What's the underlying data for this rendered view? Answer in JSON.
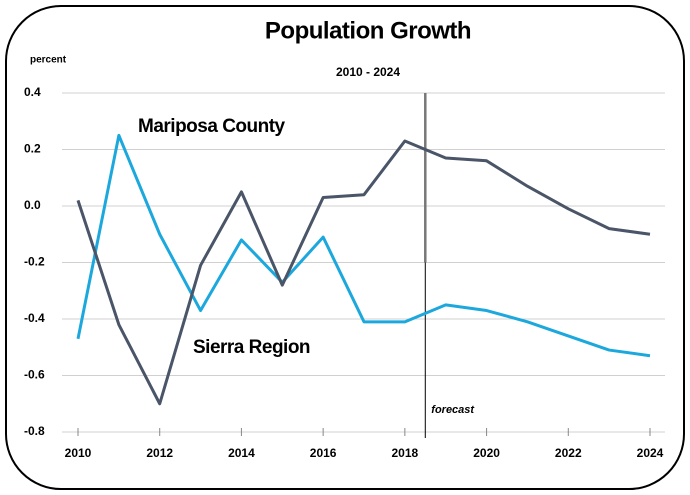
{
  "chart_data": {
    "type": "line",
    "title": "Population Growth",
    "subtitle": "2010 - 2024",
    "y_label": "percent",
    "x": [
      2010,
      2011,
      2012,
      2013,
      2014,
      2015,
      2016,
      2017,
      2018,
      2019,
      2020,
      2021,
      2022,
      2023,
      2024
    ],
    "series": [
      {
        "name": "Mariposa County",
        "color": "#1ca8dd",
        "values": [
          -0.47,
          0.25,
          -0.1,
          -0.37,
          -0.12,
          -0.27,
          -0.11,
          -0.41,
          -0.41,
          -0.35,
          -0.37,
          -0.41,
          -0.46,
          -0.51,
          -0.53
        ]
      },
      {
        "name": "Sierra Region",
        "color": "#4a5568",
        "values": [
          0.02,
          -0.42,
          -0.7,
          -0.21,
          0.05,
          -0.28,
          0.03,
          0.04,
          0.23,
          0.17,
          0.16,
          0.07,
          -0.01,
          -0.08,
          -0.1
        ]
      }
    ],
    "xlim": [
      2010,
      2024
    ],
    "xticks": [
      2010,
      2012,
      2014,
      2016,
      2018,
      2020,
      2022,
      2024
    ],
    "ylim": [
      -0.8,
      0.4
    ],
    "yticks": [
      -0.8,
      -0.6,
      -0.4,
      -0.2,
      {
        "value": 0,
        "label": "0.0"
      },
      0.2,
      0.4
    ],
    "grid": true,
    "annotation": {
      "text": "forecast",
      "x": 2018.5
    }
  }
}
